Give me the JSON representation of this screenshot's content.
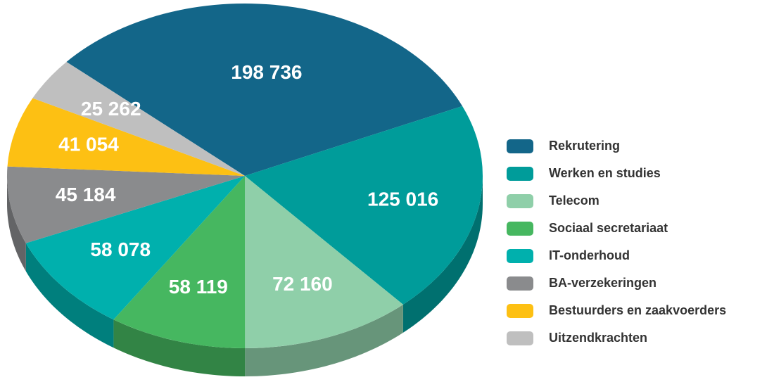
{
  "chart_data": {
    "type": "pie",
    "categories": [
      "Rekrutering",
      "Werken en studies",
      "Telecom",
      "Sociaal secretariaat",
      "IT-onderhoud",
      "BA-verzekeringen",
      "Bestuurders en zaakvoerders",
      "Uitzendkrachten"
    ],
    "values": [
      198736,
      125016,
      72160,
      58119,
      58078,
      45184,
      41054,
      25262
    ],
    "value_labels": [
      "198 736",
      "125 016",
      "72 160",
      "58 119",
      "58 078",
      "45 184",
      "41 054",
      "25 262"
    ],
    "colors": [
      "#136689",
      "#009c9a",
      "#8fcfa9",
      "#46b760",
      "#00b0ad",
      "#8a8b8d",
      "#fdc013",
      "#bfbfbf"
    ],
    "legend": "right"
  }
}
